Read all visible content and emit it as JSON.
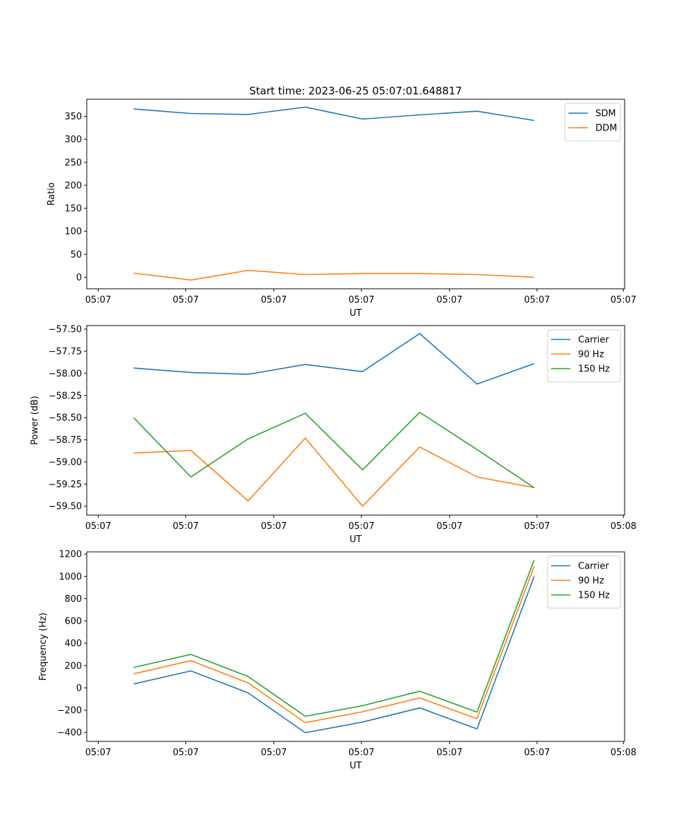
{
  "figure_title": "Start time: 2023-06-25 05:07:01.648817",
  "chart_data": [
    {
      "type": "line",
      "xlabel": "UT",
      "ylabel": "Ratio",
      "x": [
        1,
        2,
        3,
        4,
        5,
        6,
        7,
        8
      ],
      "xlim": [
        0.18,
        9.58
      ],
      "xticks": [
        0.38,
        1.91,
        3.45,
        4.98,
        6.52,
        8.05,
        9.56
      ],
      "xtick_labels": [
        "05:07",
        "05:07",
        "05:07",
        "05:07",
        "05:07",
        "05:07",
        "05:07"
      ],
      "ylim": [
        -25,
        387
      ],
      "yticks": [
        0,
        50,
        100,
        150,
        200,
        250,
        300,
        350
      ],
      "ytick_labels": [
        "0",
        "50",
        "100",
        "150",
        "200",
        "250",
        "300",
        "350"
      ],
      "legend_position": "top-right",
      "series": [
        {
          "name": "SDM",
          "color": "#1f77b4",
          "values": [
            366,
            356,
            354,
            370,
            344,
            353,
            361,
            341
          ]
        },
        {
          "name": "DDM",
          "color": "#ff7f0e",
          "values": [
            9,
            -6,
            15,
            6,
            8,
            8,
            6,
            0
          ]
        }
      ]
    },
    {
      "type": "line",
      "xlabel": "UT",
      "ylabel": "Power (dB)",
      "x": [
        1,
        2,
        3,
        4,
        5,
        6,
        7,
        8
      ],
      "xlim": [
        0.18,
        9.58
      ],
      "xticks": [
        0.38,
        1.91,
        3.45,
        4.98,
        6.52,
        8.05,
        9.56
      ],
      "xtick_labels": [
        "05:07",
        "05:07",
        "05:07",
        "05:07",
        "05:07",
        "05:07",
        "05:08"
      ],
      "ylim": [
        -59.6,
        -57.46
      ],
      "yticks": [
        -59.5,
        -59.25,
        -59.0,
        -58.75,
        -58.5,
        -58.25,
        -58.0,
        -57.75,
        -57.5
      ],
      "ytick_labels": [
        "−59.50",
        "−59.25",
        "−59.00",
        "−58.75",
        "−58.50",
        "−58.25",
        "−58.00",
        "−57.75",
        "−57.50"
      ],
      "legend_position": "top-right",
      "series": [
        {
          "name": "Carrier",
          "color": "#1f77b4",
          "values": [
            -57.94,
            -57.99,
            -58.01,
            -57.9,
            -57.98,
            -57.55,
            -58.12,
            -57.89
          ]
        },
        {
          "name": "90 Hz",
          "color": "#ff7f0e",
          "values": [
            -58.9,
            -58.87,
            -59.44,
            -58.73,
            -59.5,
            -58.83,
            -59.17,
            -59.29
          ]
        },
        {
          "name": "150 Hz",
          "color": "#2ca02c",
          "values": [
            -58.5,
            -59.17,
            -58.74,
            -58.45,
            -59.09,
            -58.44,
            -58.86,
            -59.29
          ]
        }
      ]
    },
    {
      "type": "line",
      "xlabel": "UT",
      "ylabel": "Frequency (Hz)",
      "x": [
        1,
        2,
        3,
        4,
        5,
        6,
        7,
        8
      ],
      "xlim": [
        0.18,
        9.58
      ],
      "xticks": [
        0.38,
        1.91,
        3.45,
        4.98,
        6.52,
        8.05,
        9.56
      ],
      "xtick_labels": [
        "05:07",
        "05:07",
        "05:07",
        "05:07",
        "05:07",
        "05:07",
        "05:08"
      ],
      "ylim": [
        -480,
        1220
      ],
      "yticks": [
        -400,
        -200,
        0,
        200,
        400,
        600,
        800,
        1000,
        1200
      ],
      "ytick_labels": [
        "−400",
        "−200",
        "0",
        "200",
        "400",
        "600",
        "800",
        "1000",
        "1200"
      ],
      "legend_position": "top-right",
      "series": [
        {
          "name": "Carrier",
          "color": "#1f77b4",
          "values": [
            35,
            152,
            -45,
            -402,
            -307,
            -180,
            -368,
            1000
          ]
        },
        {
          "name": "90 Hz",
          "color": "#ff7f0e",
          "values": [
            126,
            244,
            45,
            -312,
            -215,
            -90,
            -277,
            1090
          ]
        },
        {
          "name": "150 Hz",
          "color": "#2ca02c",
          "values": [
            183,
            300,
            102,
            -255,
            -160,
            -30,
            -218,
            1147
          ]
        }
      ]
    }
  ]
}
